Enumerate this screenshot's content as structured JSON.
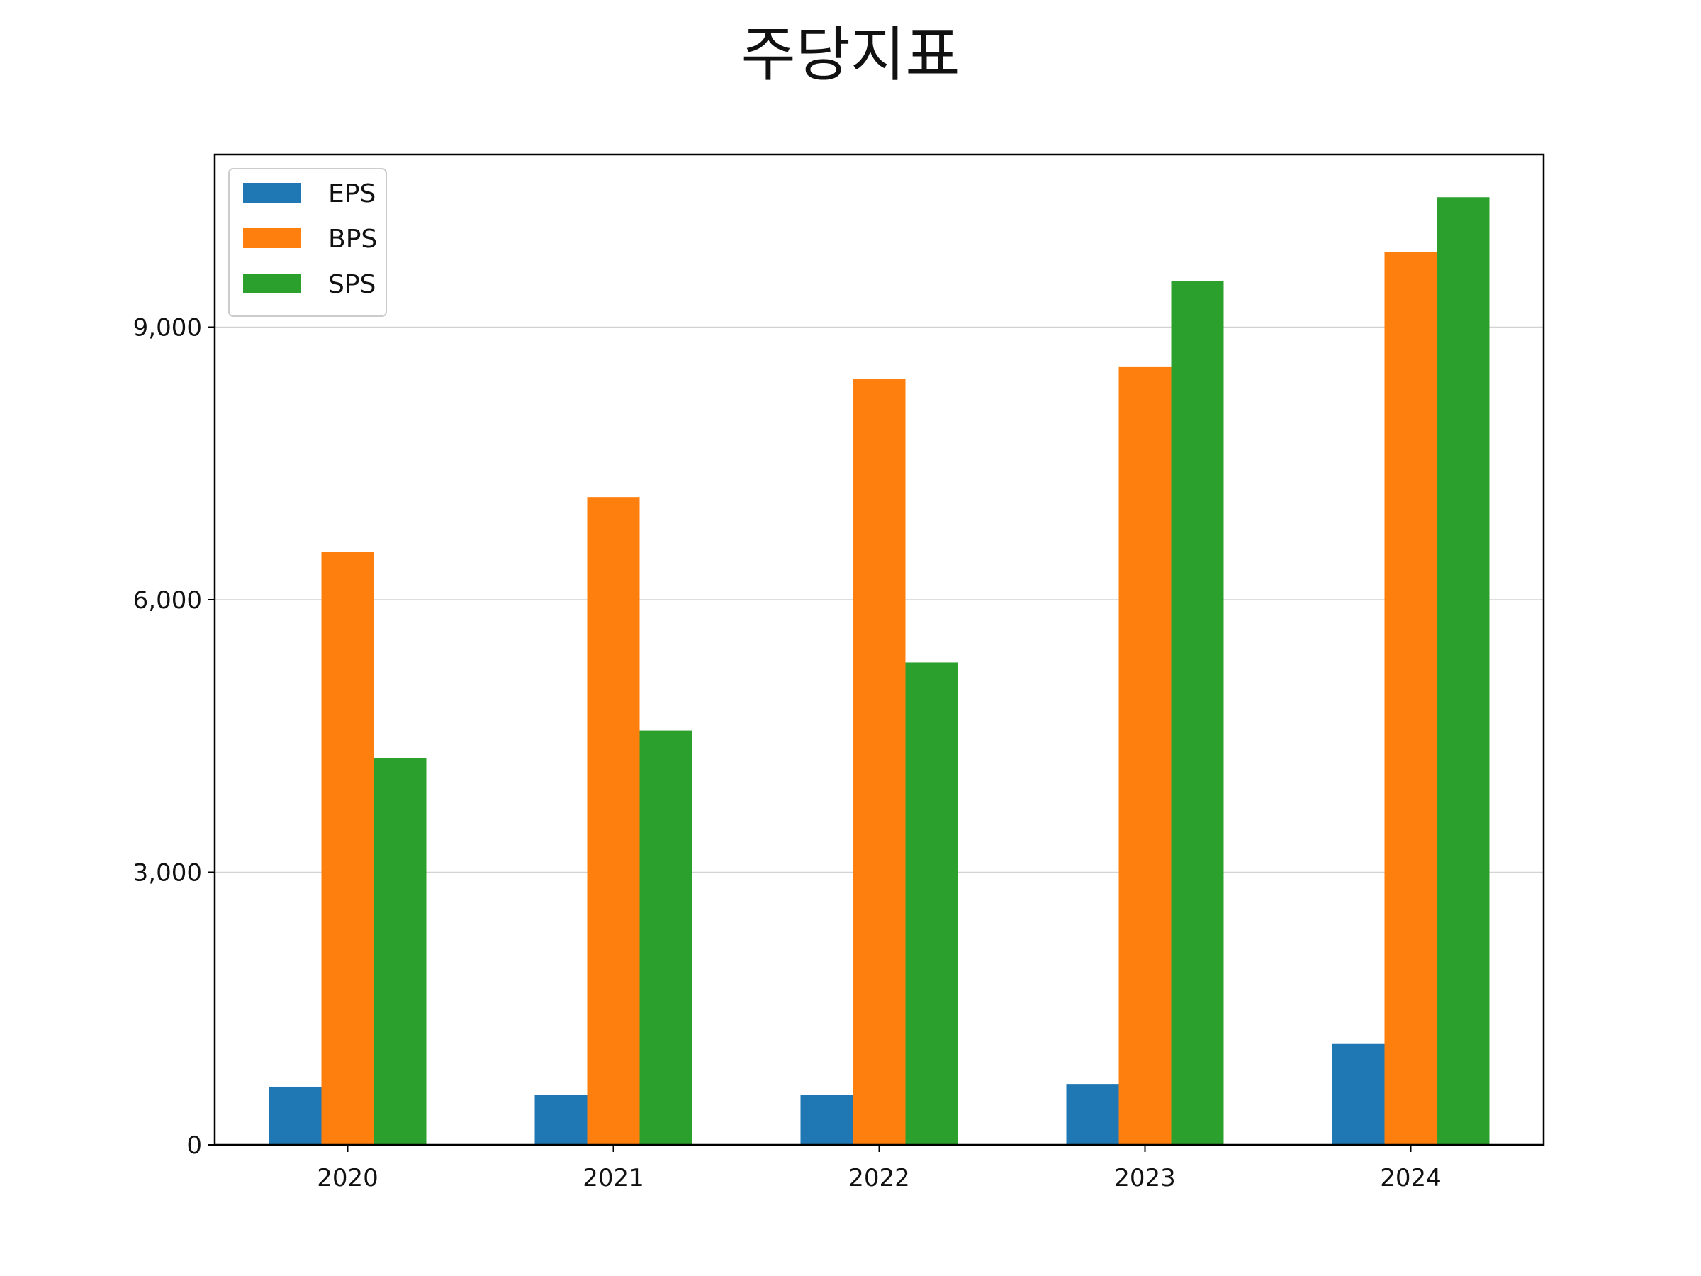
{
  "chart_data": {
    "type": "bar",
    "title": "주당지표",
    "xlabel": "",
    "ylabel": "",
    "categories": [
      "2020",
      "2021",
      "2022",
      "2023",
      "2024"
    ],
    "series": [
      {
        "name": "EPS",
        "color": "#1f77b4",
        "values": [
          640,
          550,
          550,
          670,
          1110
        ]
      },
      {
        "name": "BPS",
        "color": "#ff7f0e",
        "values": [
          6530,
          7130,
          8430,
          8560,
          9830
        ]
      },
      {
        "name": "SPS",
        "color": "#2ca02c",
        "values": [
          4260,
          4560,
          5310,
          9510,
          10430
        ]
      }
    ],
    "ylim": [
      0,
      10900
    ],
    "yticks": [
      0,
      3000,
      6000,
      9000
    ],
    "ytick_labels": [
      "0",
      "3,000",
      "6,000",
      "9,000"
    ],
    "grid": "horizontal",
    "legend_position": "upper-left"
  }
}
